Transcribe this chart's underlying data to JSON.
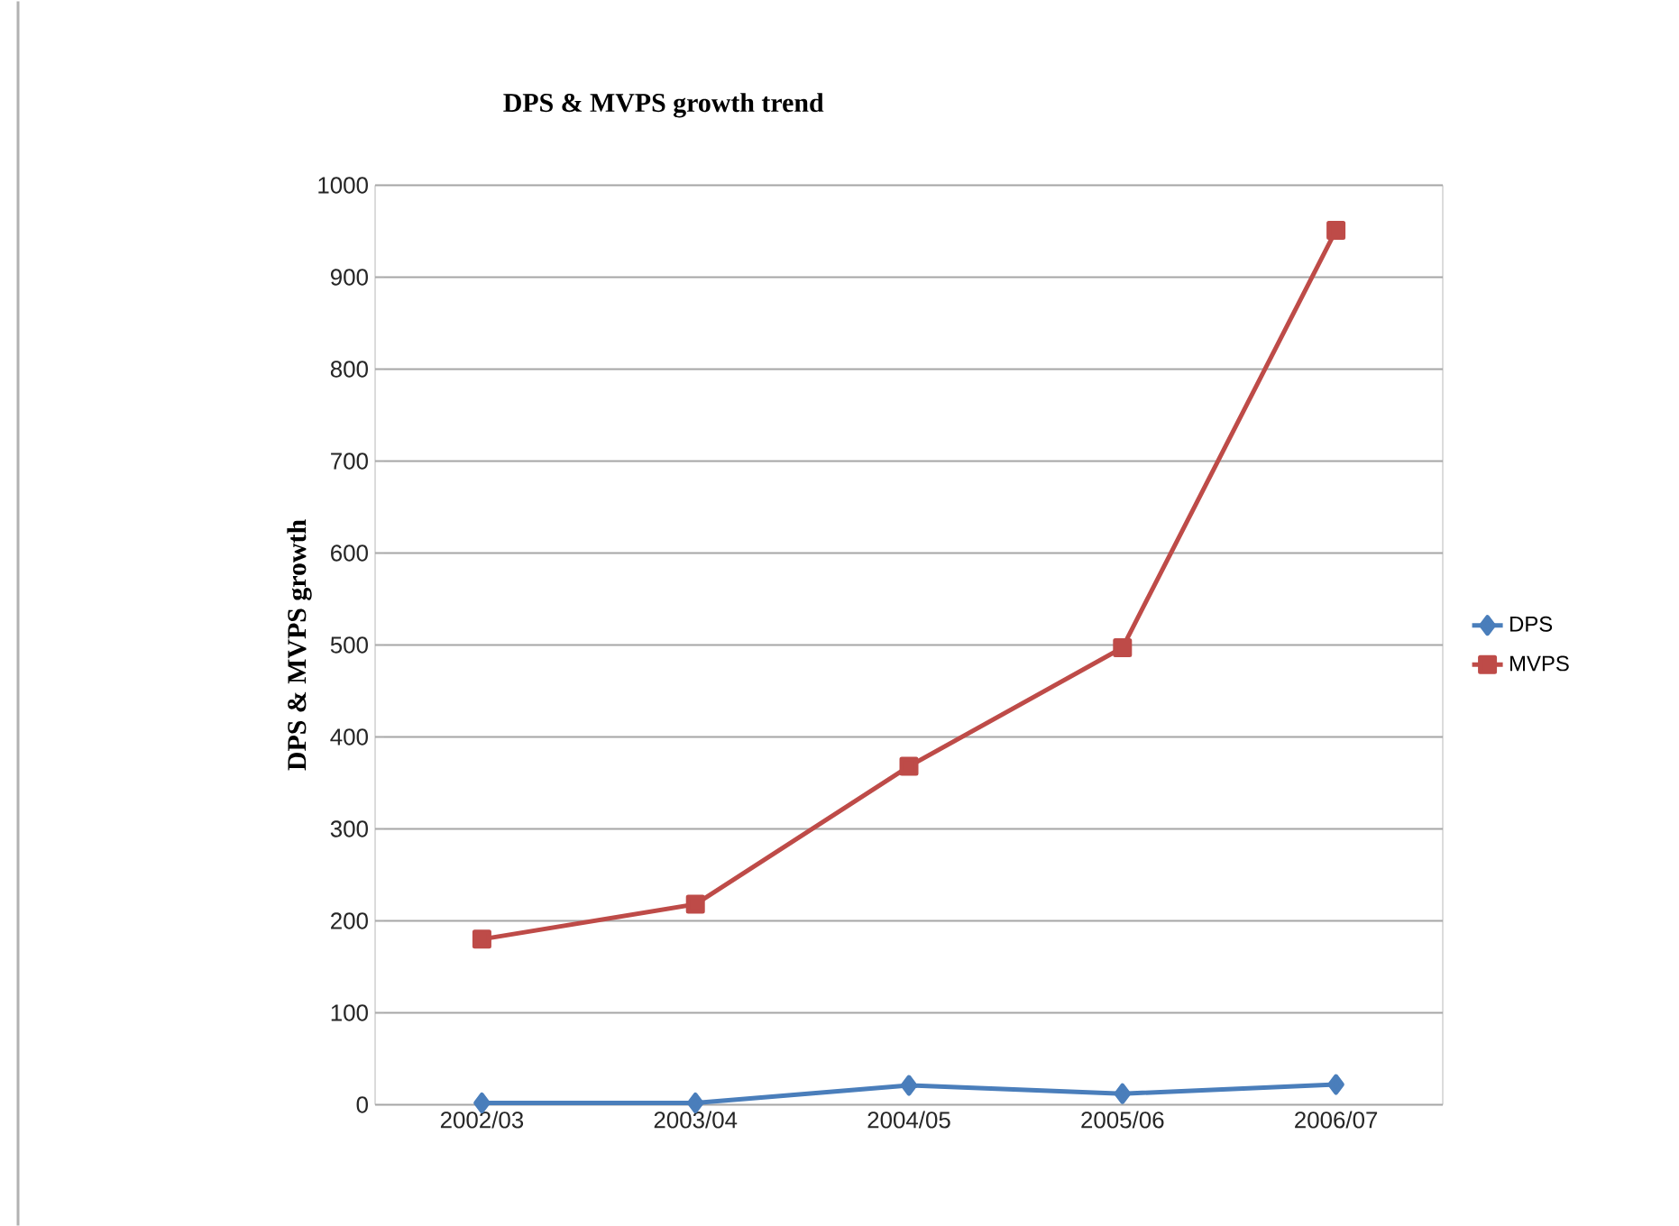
{
  "chart_data": {
    "type": "line",
    "title": "DPS & MVPS growth trend",
    "ylabel": "DPS & MVPS growth",
    "categories": [
      "2002/03",
      "2003/04",
      "2004/05",
      "2005/06",
      "2006/07"
    ],
    "series": [
      {
        "name": "DPS",
        "color": "#4a7ebb",
        "marker": "diamond",
        "values": [
          2,
          2,
          21,
          12,
          22
        ]
      },
      {
        "name": "MVPS",
        "color": "#be4b48",
        "marker": "square",
        "values": [
          180,
          218,
          368,
          497,
          951
        ]
      }
    ],
    "ylim": [
      0,
      1000
    ],
    "yticks": [
      0,
      100,
      200,
      300,
      400,
      500,
      600,
      700,
      800,
      900,
      1000
    ],
    "grid": "y",
    "legend": "right",
    "line_style": "solid"
  }
}
